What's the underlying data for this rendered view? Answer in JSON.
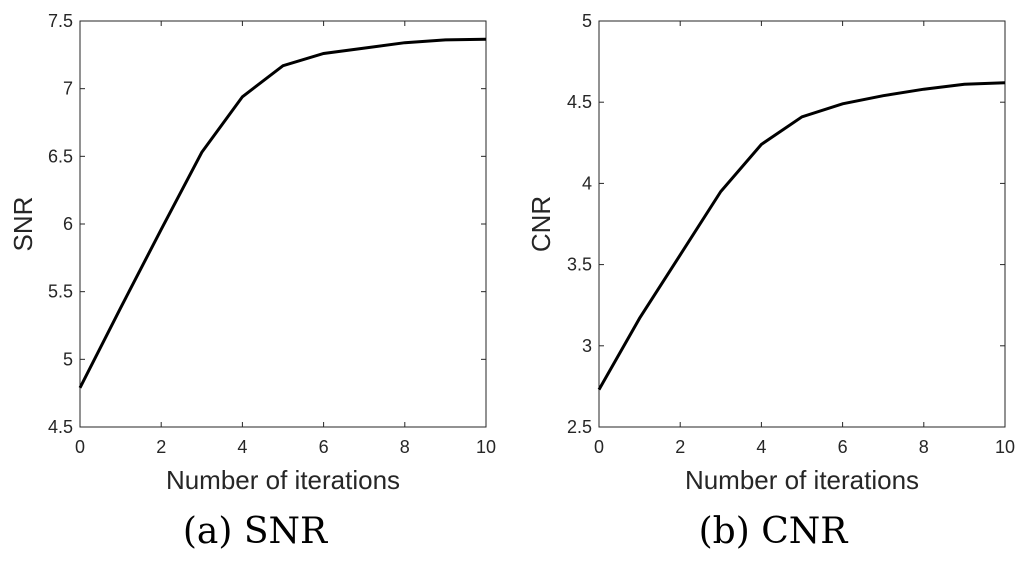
{
  "colors": {
    "line": "#000000",
    "axis": "#262626",
    "background": "#ffffff"
  },
  "chart_data": [
    {
      "type": "line",
      "caption": "(a) SNR",
      "xlabel": "Number of iterations",
      "ylabel": "SNR",
      "xlim": [
        0,
        10
      ],
      "ylim": [
        4.5,
        7.5
      ],
      "xticks": [
        0,
        2,
        4,
        6,
        8,
        10
      ],
      "xtick_labels": [
        "0",
        "2",
        "4",
        "6",
        "8",
        "10"
      ],
      "yticks": [
        4.5,
        5,
        5.5,
        6,
        6.5,
        7,
        7.5
      ],
      "ytick_labels": [
        "4.5",
        "5",
        "5.5",
        "6",
        "6.5",
        "7",
        "7.5"
      ],
      "grid": false,
      "series": [
        {
          "name": "SNR",
          "x": [
            0,
            1,
            2,
            3,
            4,
            5,
            6,
            7,
            8,
            9,
            10
          ],
          "y": [
            4.79,
            5.38,
            5.96,
            6.53,
            6.94,
            7.17,
            7.26,
            7.3,
            7.34,
            7.36,
            7.365
          ]
        }
      ]
    },
    {
      "type": "line",
      "caption": "(b) CNR",
      "xlabel": "Number of iterations",
      "ylabel": "CNR",
      "xlim": [
        0,
        10
      ],
      "ylim": [
        2.5,
        5
      ],
      "xticks": [
        0,
        2,
        4,
        6,
        8,
        10
      ],
      "xtick_labels": [
        "0",
        "2",
        "4",
        "6",
        "8",
        "10"
      ],
      "yticks": [
        2.5,
        3,
        3.5,
        4,
        4.5,
        5
      ],
      "ytick_labels": [
        "2.5",
        "3",
        "3.5",
        "4",
        "4.5",
        "5"
      ],
      "grid": false,
      "series": [
        {
          "name": "CNR",
          "x": [
            0,
            1,
            2,
            3,
            4,
            5,
            6,
            7,
            8,
            9,
            10
          ],
          "y": [
            2.73,
            3.17,
            3.56,
            3.95,
            4.24,
            4.41,
            4.49,
            4.54,
            4.58,
            4.61,
            4.62
          ]
        }
      ]
    }
  ]
}
